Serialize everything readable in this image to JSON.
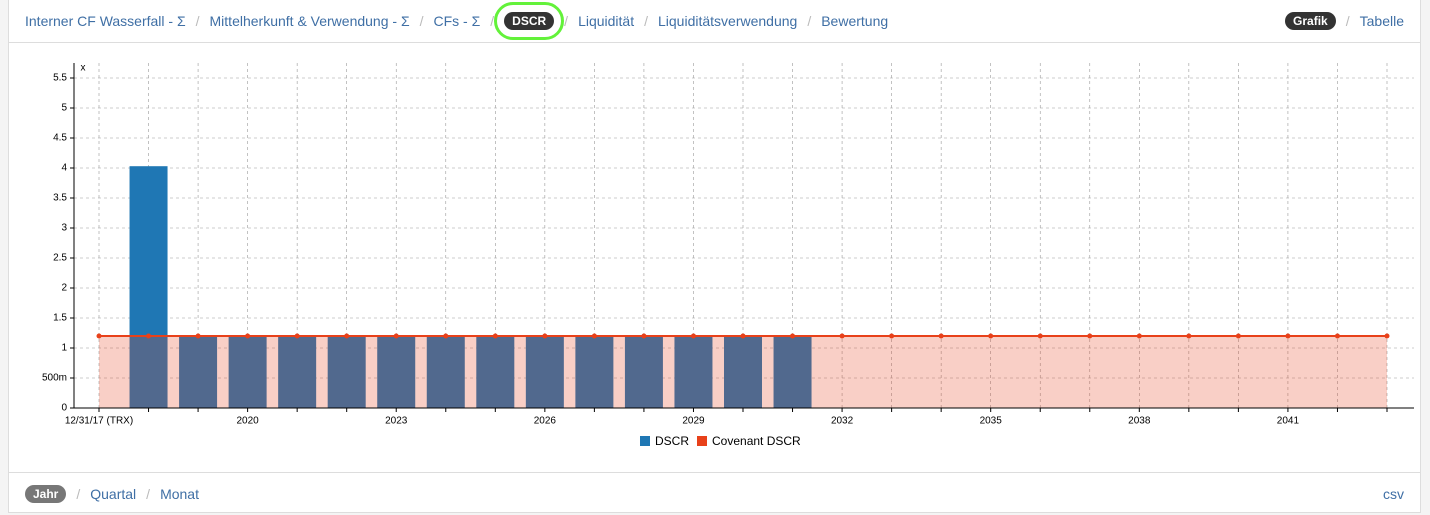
{
  "nav": {
    "separator": "/",
    "tabs": [
      "Interner CF Wasserfall - Σ",
      "Mittelherkunft & Verwendung - Σ",
      "CFs - Σ",
      "DSCR",
      "Liquidität",
      "Liquiditätsverwendung",
      "Bewertung"
    ],
    "active_tab": 3,
    "views": [
      "Grafik",
      "Tabelle"
    ],
    "active_view": 0,
    "periods": [
      "Jahr",
      "Quartal",
      "Monat"
    ],
    "active_period": 0,
    "export": "csv"
  },
  "chart_data": {
    "type": "bar",
    "y_unit": "x",
    "categories": [
      "12/31/17 (TRX)",
      null,
      null,
      "2020",
      null,
      null,
      "2023",
      null,
      null,
      "2026",
      null,
      null,
      "2029",
      null,
      null,
      "2032",
      null,
      null,
      "2035",
      null,
      null,
      "2038",
      null,
      null,
      "2041",
      null,
      null
    ],
    "series": [
      {
        "name": "DSCR",
        "color": "#1f77b4",
        "type": "bar",
        "values": [
          null,
          4.03,
          1.2,
          1.2,
          1.2,
          1.2,
          1.2,
          1.2,
          1.2,
          1.2,
          1.2,
          1.2,
          1.2,
          1.2,
          1.2,
          null,
          null,
          null,
          null,
          null,
          null,
          null,
          null,
          null,
          null,
          null,
          null
        ]
      },
      {
        "name": "Covenant DSCR",
        "color": "#e8411a",
        "type": "area",
        "values": [
          1.2,
          1.2,
          1.2,
          1.2,
          1.2,
          1.2,
          1.2,
          1.2,
          1.2,
          1.2,
          1.2,
          1.2,
          1.2,
          1.2,
          1.2,
          1.2,
          1.2,
          1.2,
          1.2,
          1.2,
          1.2,
          1.2,
          1.2,
          1.2,
          1.2,
          1.2,
          1.2
        ]
      }
    ],
    "ylim": [
      0,
      5.75
    ],
    "yticks": [
      0,
      {
        "value": 0.5,
        "label": "500m"
      },
      1,
      1.5,
      2,
      2.5,
      3,
      3.5,
      4,
      4.5,
      5,
      5.5
    ],
    "grid": true,
    "legend": "bottom"
  }
}
